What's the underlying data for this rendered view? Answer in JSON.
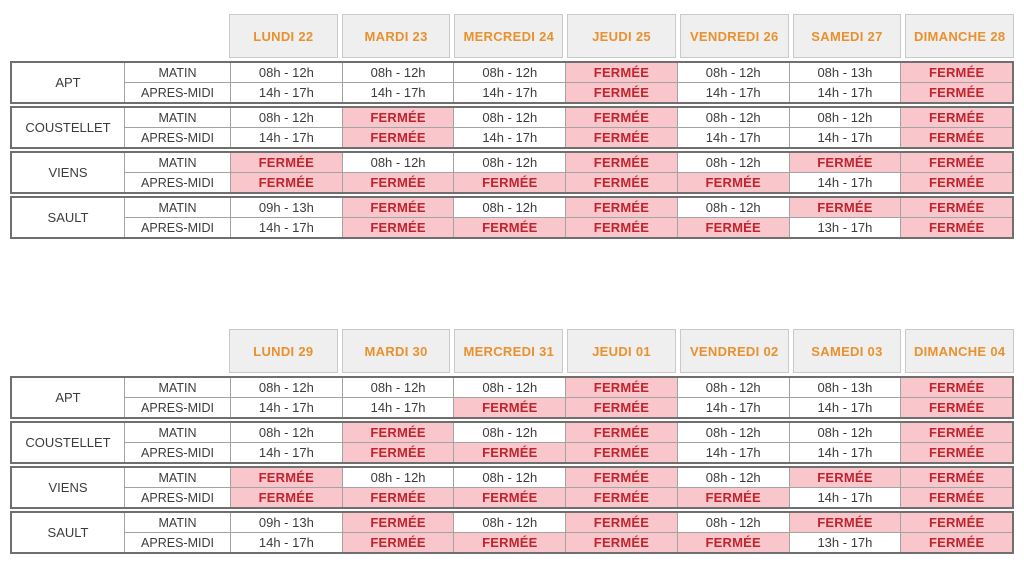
{
  "style": {
    "header_bg": "#efefef",
    "header_text_color": "#ea912d",
    "closed_bg": "#f9c6cc",
    "closed_text_color": "#c1242c",
    "open_text_color": "#3c3c3c",
    "grid_line_color": "#a3a3a3",
    "group_border_color": "#6f6f6f"
  },
  "closed_label": "FERMÉE",
  "row_labels": [
    "MATIN",
    "APRES-MIDI"
  ],
  "tables": [
    {
      "name": "week1",
      "days": [
        "LUNDI 22",
        "MARDI 23",
        "MERCREDI 24",
        "JEUDI 25",
        "VENDREDI 26",
        "SAMEDI 27",
        "DIMANCHE 28"
      ],
      "groups": [
        {
          "location": "APT",
          "matin": [
            "08h - 12h",
            "08h - 12h",
            "08h - 12h",
            "FERMÉE",
            "08h - 12h",
            "08h - 13h",
            "FERMÉE"
          ],
          "apres_midi": [
            "14h - 17h",
            "14h - 17h",
            "14h - 17h",
            "FERMÉE",
            "14h - 17h",
            "14h - 17h",
            "FERMÉE"
          ]
        },
        {
          "location": "COUSTELLET",
          "matin": [
            "08h - 12h",
            "FERMÉE",
            "08h - 12h",
            "FERMÉE",
            "08h - 12h",
            "08h - 12h",
            "FERMÉE"
          ],
          "apres_midi": [
            "14h - 17h",
            "FERMÉE",
            "14h - 17h",
            "FERMÉE",
            "14h - 17h",
            "14h - 17h",
            "FERMÉE"
          ]
        },
        {
          "location": "VIENS",
          "matin": [
            "FERMÉE",
            "08h - 12h",
            "08h - 12h",
            "FERMÉE",
            "08h - 12h",
            "FERMÉE",
            "FERMÉE"
          ],
          "apres_midi": [
            "FERMÉE",
            "FERMÉE",
            "FERMÉE",
            "FERMÉE",
            "FERMÉE",
            "14h - 17h",
            "FERMÉE"
          ]
        },
        {
          "location": "SAULT",
          "matin": [
            "09h - 13h",
            "FERMÉE",
            "08h - 12h",
            "FERMÉE",
            "08h - 12h",
            "FERMÉE",
            "FERMÉE"
          ],
          "apres_midi": [
            "14h - 17h",
            "FERMÉE",
            "FERMÉE",
            "FERMÉE",
            "FERMÉE",
            "13h - 17h",
            "FERMÉE"
          ]
        }
      ]
    },
    {
      "name": "week2",
      "days": [
        "LUNDI 29",
        "MARDI 30",
        "MERCREDI 31",
        "JEUDI 01",
        "VENDREDI 02",
        "SAMEDI 03",
        "DIMANCHE 04"
      ],
      "groups": [
        {
          "location": "APT",
          "matin": [
            "08h - 12h",
            "08h - 12h",
            "08h - 12h",
            "FERMÉE",
            "08h - 12h",
            "08h - 13h",
            "FERMÉE"
          ],
          "apres_midi": [
            "14h - 17h",
            "14h - 17h",
            "FERMÉE",
            "FERMÉE",
            "14h - 17h",
            "14h - 17h",
            "FERMÉE"
          ]
        },
        {
          "location": "COUSTELLET",
          "matin": [
            "08h - 12h",
            "FERMÉE",
            "08h - 12h",
            "FERMÉE",
            "08h - 12h",
            "08h - 12h",
            "FERMÉE"
          ],
          "apres_midi": [
            "14h - 17h",
            "FERMÉE",
            "FERMÉE",
            "FERMÉE",
            "14h - 17h",
            "14h - 17h",
            "FERMÉE"
          ]
        },
        {
          "location": "VIENS",
          "matin": [
            "FERMÉE",
            "08h - 12h",
            "08h - 12h",
            "FERMÉE",
            "08h - 12h",
            "FERMÉE",
            "FERMÉE"
          ],
          "apres_midi": [
            "FERMÉE",
            "FERMÉE",
            "FERMÉE",
            "FERMÉE",
            "FERMÉE",
            "14h - 17h",
            "FERMÉE"
          ]
        },
        {
          "location": "SAULT",
          "matin": [
            "09h - 13h",
            "FERMÉE",
            "08h - 12h",
            "FERMÉE",
            "08h - 12h",
            "FERMÉE",
            "FERMÉE"
          ],
          "apres_midi": [
            "14h - 17h",
            "FERMÉE",
            "FERMÉE",
            "FERMÉE",
            "FERMÉE",
            "13h - 17h",
            "FERMÉE"
          ]
        }
      ]
    }
  ]
}
